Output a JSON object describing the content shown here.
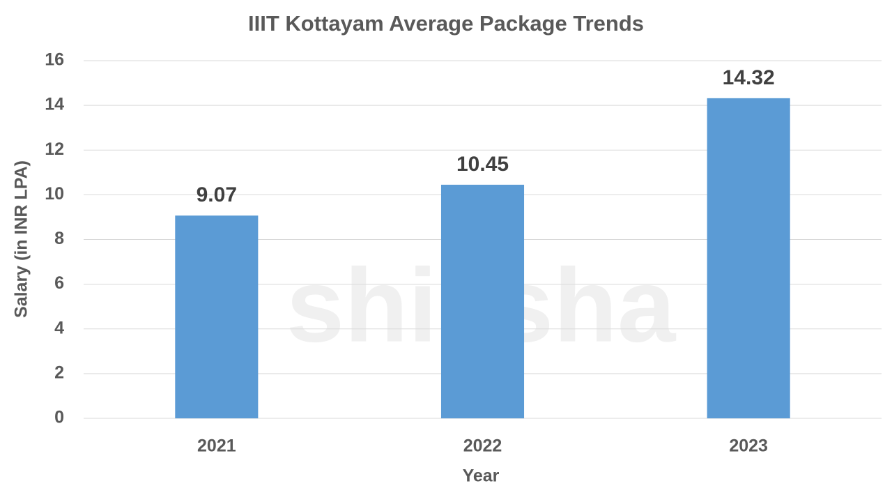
{
  "chart_data": {
    "type": "bar",
    "title": "IIIT Kottayam Average Package Trends",
    "x_label": "Year",
    "y_label": "Salary (in INR LPA)",
    "categories": [
      "2021",
      "2022",
      "2023"
    ],
    "values": [
      9.07,
      10.45,
      14.32
    ],
    "color": "#5b9bd5",
    "ylim": [
      0,
      16
    ],
    "yticks": [
      0,
      2,
      4,
      6,
      8,
      10,
      12,
      14,
      16
    ],
    "grid": true,
    "watermark": "shiksha"
  }
}
